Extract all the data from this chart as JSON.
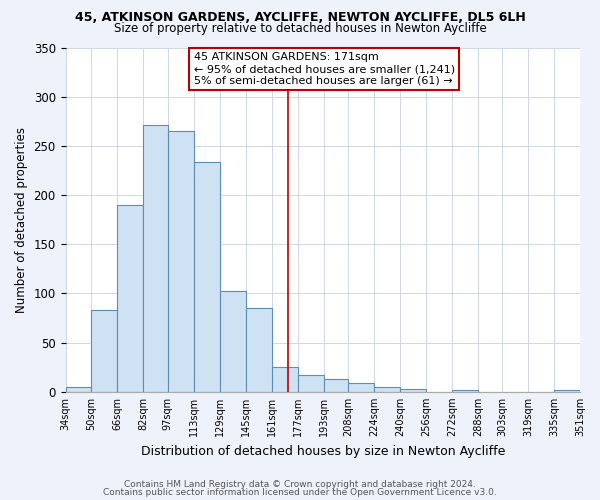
{
  "title1": "45, ATKINSON GARDENS, AYCLIFFE, NEWTON AYCLIFFE, DL5 6LH",
  "title2": "Size of property relative to detached houses in Newton Aycliffe",
  "xlabel": "Distribution of detached houses by size in Newton Aycliffe",
  "ylabel": "Number of detached properties",
  "bar_left_edges": [
    34,
    50,
    66,
    82,
    97,
    113,
    129,
    145,
    161,
    177,
    193,
    208,
    224,
    240,
    256,
    272,
    288,
    303,
    319,
    335
  ],
  "bar_widths": [
    16,
    16,
    16,
    15,
    16,
    16,
    16,
    16,
    16,
    16,
    15,
    16,
    16,
    16,
    16,
    16,
    15,
    16,
    16,
    16
  ],
  "bar_heights": [
    5,
    83,
    190,
    271,
    265,
    234,
    102,
    85,
    25,
    17,
    13,
    9,
    5,
    3,
    0,
    2,
    0,
    0,
    0,
    2
  ],
  "bar_fill_color": "#cfe2f3",
  "bar_edge_color": "#5b8db8",
  "tick_labels": [
    "34sqm",
    "50sqm",
    "66sqm",
    "82sqm",
    "97sqm",
    "113sqm",
    "129sqm",
    "145sqm",
    "161sqm",
    "177sqm",
    "193sqm",
    "208sqm",
    "224sqm",
    "240sqm",
    "256sqm",
    "272sqm",
    "288sqm",
    "303sqm",
    "319sqm",
    "335sqm",
    "351sqm"
  ],
  "vline_x": 171,
  "vline_color": "#c00000",
  "annotation_line1": "45 ATKINSON GARDENS: 171sqm",
  "annotation_line2": "← 95% of detached houses are smaller (1,241)",
  "annotation_line3": "5% of semi-detached houses are larger (61) →",
  "ylim": [
    0,
    350
  ],
  "yticks": [
    0,
    50,
    100,
    150,
    200,
    250,
    300,
    350
  ],
  "footnote1": "Contains HM Land Registry data © Crown copyright and database right 2024.",
  "footnote2": "Contains public sector information licensed under the Open Government Licence v3.0.",
  "bg_color": "#eef2fb",
  "plot_bg_color": "#ffffff",
  "grid_color": "#c8d0e0"
}
